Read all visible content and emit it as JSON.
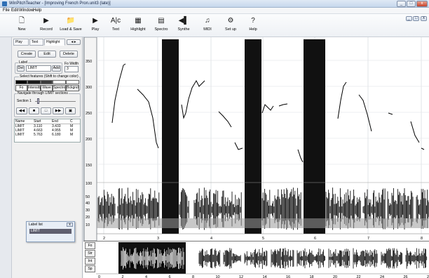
{
  "window": {
    "title": "WinPitchTeacher - [Improving French Pron.unit3 (late)]",
    "caption_buttons": [
      "_",
      "□",
      "x"
    ],
    "mdi_buttons": [
      "_",
      "□",
      "x"
    ]
  },
  "menu": [
    "File",
    "Edit",
    "Window",
    "Help"
  ],
  "toolbar": [
    {
      "label": "New",
      "icon": "new-document-icon",
      "glyph": "🗋"
    },
    {
      "label": "Record",
      "icon": "record-icon",
      "glyph": "▶"
    },
    {
      "label": "Load & Save",
      "icon": "folder-icon",
      "glyph": "📁"
    },
    {
      "label": "Play",
      "icon": "play-icon",
      "glyph": "▶"
    },
    {
      "label": "Text",
      "icon": "text-icon",
      "glyph": "A|c"
    },
    {
      "label": "Highlight",
      "icon": "highlight-icon",
      "glyph": "▦"
    },
    {
      "label": "Spectro",
      "icon": "spectro-icon",
      "glyph": "▤"
    },
    {
      "label": "Synthe",
      "icon": "synthe-icon",
      "glyph": "◀▌"
    },
    {
      "label": "MIDI",
      "icon": "midi-icon",
      "glyph": "♫"
    },
    {
      "label": "Set up",
      "icon": "setup-icon",
      "glyph": "⚙"
    },
    {
      "label": "Help",
      "icon": "help-icon",
      "glyph": "?"
    }
  ],
  "panel": {
    "tabs": [
      "Play",
      "Text",
      "Highlight"
    ],
    "edit_buttons": [
      "Create",
      "Edit",
      "Delete"
    ],
    "label_group": "Label",
    "label_del": "Del",
    "label_value": "LIMIT",
    "label_add": "Add",
    "fo_width_label": "Fo Width",
    "fo_width_value": "3",
    "features_group": "Select features (Shift to change color)",
    "features": [
      "Fo",
      "Intensity",
      "Wave",
      "Spectro",
      "Bckgnd"
    ],
    "feature_colors": [
      "#000000",
      "#1a1a1a",
      "#3a3a3a",
      "#ffffff",
      "#ffffff"
    ],
    "navigate_group": "Navigate through LIMIT sections",
    "section_label": "Section 1",
    "nav_icons": [
      "first-icon",
      "stop-icon",
      "stop-icon",
      "play-icon",
      "save-icon"
    ],
    "nav_glyphs": [
      "◀◀",
      "■",
      "□",
      "▶▶",
      "▣"
    ],
    "table": {
      "headers": [
        "Name",
        "Start",
        "End",
        "C"
      ],
      "rows": [
        [
          "LIMIT",
          "3.110",
          "3.433",
          "M"
        ],
        [
          "LIMIT",
          "4.663",
          "4.955",
          "M"
        ],
        [
          "LIMIT",
          "5.763",
          "6.180",
          "M"
        ]
      ]
    },
    "label_list": {
      "title": "Label list",
      "close": "x",
      "item": "LIMIT"
    }
  },
  "plot": {
    "y_ticks": [
      "350",
      "300",
      "250",
      "200",
      "150",
      "100",
      "50",
      "40",
      "30",
      "20",
      "10"
    ],
    "x_ticks": [
      "2",
      "3",
      "4",
      "5",
      "6",
      "7",
      "8"
    ]
  },
  "mini": {
    "buttons": [
      "Fo",
      "Str",
      "Int",
      "Sp"
    ],
    "x_ticks": [
      "0",
      "2",
      "4",
      "6",
      "8",
      "10",
      "12",
      "14",
      "16",
      "18",
      "20",
      "22",
      "24",
      "26",
      "28"
    ]
  }
}
